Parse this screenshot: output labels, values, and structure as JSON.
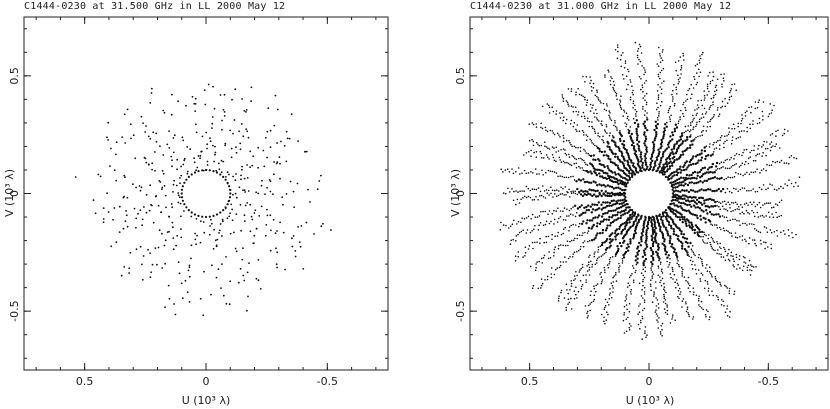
{
  "chart_data": [
    {
      "type": "scatter",
      "title": "C1444-0230 at 31.500 GHz in LL  2000 May 12",
      "xlabel": "U (10³ λ)",
      "ylabel": "V (10³ λ)",
      "xlim": [
        0.75,
        -0.75
      ],
      "ylim": [
        -0.75,
        0.75
      ],
      "xticks": [
        0.5,
        0,
        -0.5
      ],
      "xtick_labels": [
        "0.5",
        "0",
        "-0.5"
      ],
      "yticks": [
        0.5,
        0,
        -0.5
      ],
      "ytick_labels": [
        "0.5",
        "0",
        "-0.5"
      ],
      "grid": false,
      "pattern": {
        "style": "snapshot",
        "spokes": 34,
        "inner_radius": 0.1,
        "outer_radius": 0.55,
        "points_per_spoke": 22
      }
    },
    {
      "type": "scatter",
      "title": "C1444-0230 at 31.000 GHz in LL  2000 May 12",
      "xlabel": "U (10³ λ)",
      "ylabel": "V (10³ λ)",
      "xlim": [
        0.75,
        -0.75
      ],
      "ylim": [
        -0.75,
        0.75
      ],
      "xticks": [
        0.5,
        0,
        -0.5
      ],
      "xtick_labels": [
        "0.5",
        "0",
        "-0.5"
      ],
      "yticks": [
        0.5,
        0,
        -0.5
      ],
      "ytick_labels": [
        "0.5",
        "0",
        "-0.5"
      ],
      "grid": false,
      "pattern": {
        "style": "tracks",
        "spokes": 48,
        "inner_radius": 0.1,
        "outer_radius": 0.65,
        "points_per_spoke": 60
      }
    }
  ]
}
